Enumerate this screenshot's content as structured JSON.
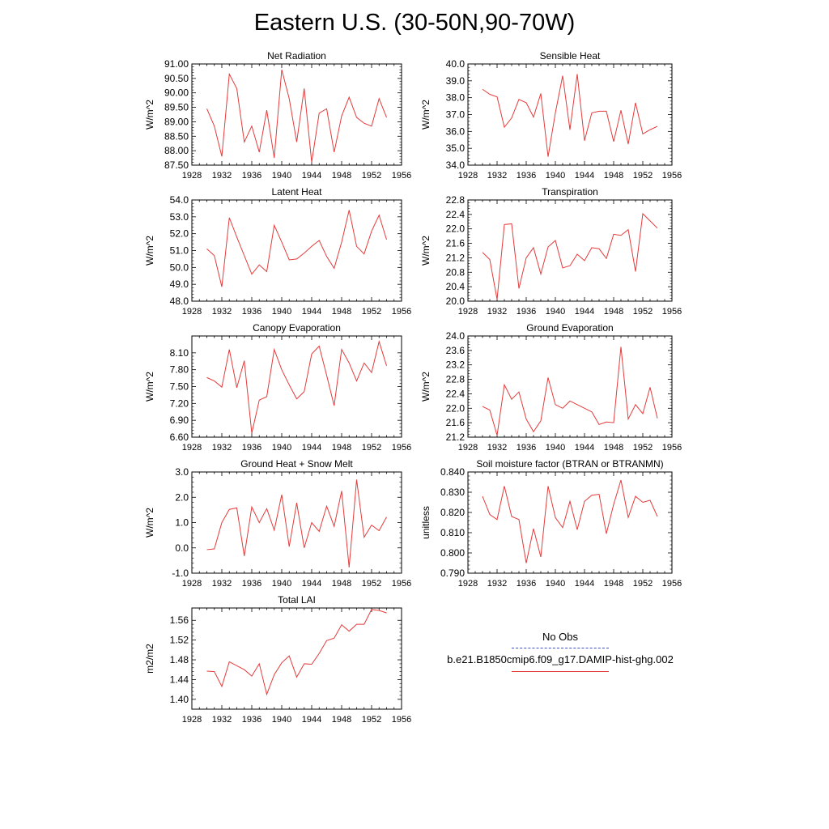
{
  "title": "Eastern U.S. (30-50N,90-70W)",
  "legend": {
    "obs_label": "No Obs",
    "obs_color": "#3f4fbf",
    "model_label": "b.e21.B1850cmip6.f09_g17.DAMIP-hist-ghg.002",
    "model_color": "#e43b3b"
  },
  "chart_data": [
    {
      "type": "line",
      "title": "Net Radiation",
      "ylabel": "W/m^2",
      "x": [
        1930,
        1931,
        1932,
        1933,
        1934,
        1935,
        1936,
        1937,
        1938,
        1939,
        1940,
        1941,
        1942,
        1943,
        1944,
        1945,
        1946,
        1947,
        1948,
        1949,
        1950,
        1951,
        1952,
        1953,
        1954
      ],
      "series": [
        {
          "values": [
            89.45,
            88.85,
            87.8,
            90.65,
            90.15,
            88.3,
            88.85,
            87.95,
            89.4,
            87.75,
            90.8,
            89.8,
            88.3,
            90.15,
            87.6,
            89.3,
            89.45,
            87.95,
            89.2,
            89.85,
            89.15,
            88.95,
            88.85,
            89.8,
            89.15
          ]
        }
      ],
      "xlim": [
        1928,
        1956
      ],
      "xticks": [
        1928,
        1932,
        1936,
        1940,
        1944,
        1948,
        1952,
        1956
      ],
      "ylim": [
        87.5,
        91.0
      ],
      "yticks": [
        "87.50",
        "88.00",
        "88.50",
        "89.00",
        "89.50",
        "90.00",
        "90.50",
        "91.00"
      ]
    },
    {
      "type": "line",
      "title": "Sensible Heat",
      "ylabel": "W/m^2",
      "x": [
        1930,
        1931,
        1932,
        1933,
        1934,
        1935,
        1936,
        1937,
        1938,
        1939,
        1940,
        1941,
        1942,
        1943,
        1944,
        1945,
        1946,
        1947,
        1948,
        1949,
        1950,
        1951,
        1952,
        1953,
        1954
      ],
      "series": [
        {
          "values": [
            38.5,
            38.2,
            38.05,
            36.25,
            36.8,
            37.9,
            37.7,
            36.85,
            38.25,
            34.5,
            37.1,
            39.3,
            36.1,
            39.4,
            35.45,
            37.1,
            37.2,
            37.2,
            35.4,
            37.25,
            35.25,
            37.7,
            35.85,
            36.1,
            36.3
          ]
        }
      ],
      "xlim": [
        1928,
        1956
      ],
      "xticks": [
        1928,
        1932,
        1936,
        1940,
        1944,
        1948,
        1952,
        1956
      ],
      "ylim": [
        34.0,
        40.0
      ],
      "yticks": [
        "34.0",
        "35.0",
        "36.0",
        "37.0",
        "38.0",
        "39.0",
        "40.0"
      ]
    },
    {
      "type": "line",
      "title": "Latent Heat",
      "ylabel": "W/m^2",
      "x": [
        1930,
        1931,
        1932,
        1933,
        1934,
        1935,
        1936,
        1937,
        1938,
        1939,
        1940,
        1941,
        1942,
        1943,
        1944,
        1945,
        1946,
        1947,
        1948,
        1949,
        1950,
        1951,
        1952,
        1953,
        1954
      ],
      "series": [
        {
          "values": [
            51.1,
            50.7,
            48.85,
            52.95,
            51.8,
            50.7,
            49.6,
            50.15,
            49.75,
            52.5,
            51.5,
            50.45,
            50.5,
            50.85,
            51.25,
            51.6,
            50.65,
            49.95,
            51.5,
            53.4,
            51.25,
            50.8,
            52.15,
            53.1,
            51.65
          ]
        }
      ],
      "xlim": [
        1928,
        1956
      ],
      "xticks": [
        1928,
        1932,
        1936,
        1940,
        1944,
        1948,
        1952,
        1956
      ],
      "ylim": [
        48.0,
        54.0
      ],
      "yticks": [
        "48.0",
        "49.0",
        "50.0",
        "51.0",
        "52.0",
        "53.0",
        "54.0"
      ]
    },
    {
      "type": "line",
      "title": "Transpiration",
      "ylabel": "W/m^2",
      "x": [
        1930,
        1931,
        1932,
        1933,
        1934,
        1935,
        1936,
        1937,
        1938,
        1939,
        1940,
        1941,
        1942,
        1943,
        1944,
        1945,
        1946,
        1947,
        1948,
        1949,
        1950,
        1951,
        1952,
        1953,
        1954
      ],
      "series": [
        {
          "values": [
            21.35,
            21.15,
            20.05,
            22.12,
            22.14,
            20.35,
            21.2,
            21.48,
            20.75,
            21.5,
            21.68,
            20.92,
            20.98,
            21.3,
            21.12,
            21.48,
            21.45,
            21.18,
            21.85,
            21.82,
            21.98,
            20.82,
            22.42,
            22.22,
            22.02
          ]
        }
      ],
      "xlim": [
        1928,
        1956
      ],
      "xticks": [
        1928,
        1932,
        1936,
        1940,
        1944,
        1948,
        1952,
        1956
      ],
      "ylim": [
        20.0,
        22.8
      ],
      "yticks": [
        "20.0",
        "20.4",
        "20.8",
        "21.2",
        "21.6",
        "22.0",
        "22.4",
        "22.8"
      ]
    },
    {
      "type": "line",
      "title": "Canopy Evaporation",
      "ylabel": "W/m^2",
      "x": [
        1930,
        1931,
        1932,
        1933,
        1934,
        1935,
        1936,
        1937,
        1938,
        1939,
        1940,
        1941,
        1942,
        1943,
        1944,
        1945,
        1946,
        1947,
        1948,
        1949,
        1950,
        1951,
        1952,
        1953,
        1954
      ],
      "series": [
        {
          "values": [
            7.66,
            7.6,
            7.49,
            8.16,
            7.48,
            7.96,
            6.67,
            7.26,
            7.32,
            8.16,
            7.8,
            7.53,
            7.28,
            7.41,
            8.08,
            8.22,
            7.7,
            7.16,
            8.16,
            7.92,
            7.6,
            7.92,
            7.75,
            8.3,
            7.87
          ]
        }
      ],
      "xlim": [
        1928,
        1956
      ],
      "xticks": [
        1928,
        1932,
        1936,
        1940,
        1944,
        1948,
        1952,
        1956
      ],
      "ylim": [
        6.6,
        8.4
      ],
      "yticks": [
        "6.60",
        "6.90",
        "7.20",
        "7.50",
        "7.80",
        "8.10"
      ]
    },
    {
      "type": "line",
      "title": "Ground Evaporation",
      "ylabel": "W/m^2",
      "x": [
        1930,
        1931,
        1932,
        1933,
        1934,
        1935,
        1936,
        1937,
        1938,
        1939,
        1940,
        1941,
        1942,
        1943,
        1944,
        1945,
        1946,
        1947,
        1948,
        1949,
        1950,
        1951,
        1952,
        1953,
        1954
      ],
      "series": [
        {
          "values": [
            22.05,
            21.95,
            21.25,
            22.65,
            22.25,
            22.45,
            21.7,
            21.35,
            21.65,
            22.85,
            22.1,
            22.0,
            22.2,
            22.1,
            22.0,
            21.9,
            21.55,
            21.62,
            21.6,
            23.7,
            21.7,
            22.1,
            21.85,
            22.58,
            21.72
          ]
        }
      ],
      "xlim": [
        1928,
        1956
      ],
      "xticks": [
        1928,
        1932,
        1936,
        1940,
        1944,
        1948,
        1952,
        1956
      ],
      "ylim": [
        21.2,
        24.0
      ],
      "yticks": [
        "21.2",
        "21.6",
        "22.0",
        "22.4",
        "22.8",
        "23.2",
        "23.6",
        "24.0"
      ]
    },
    {
      "type": "line",
      "title": "Ground Heat + Snow Melt",
      "ylabel": "W/m^2",
      "x": [
        1930,
        1931,
        1932,
        1933,
        1934,
        1935,
        1936,
        1937,
        1938,
        1939,
        1940,
        1941,
        1942,
        1943,
        1944,
        1945,
        1946,
        1947,
        1948,
        1949,
        1950,
        1951,
        1952,
        1953,
        1954
      ],
      "series": [
        {
          "values": [
            -0.07,
            -0.04,
            1.0,
            1.52,
            1.58,
            -0.32,
            1.62,
            1.0,
            1.55,
            0.7,
            2.1,
            0.05,
            1.78,
            0.0,
            1.0,
            0.65,
            1.65,
            0.85,
            2.25,
            -0.77,
            2.7,
            0.42,
            0.9,
            0.68,
            1.22
          ]
        }
      ],
      "xlim": [
        1928,
        1956
      ],
      "xticks": [
        1928,
        1932,
        1936,
        1940,
        1944,
        1948,
        1952,
        1956
      ],
      "ylim": [
        -1.0,
        3.0
      ],
      "yticks": [
        "-1.0",
        "0.0",
        "1.0",
        "2.0",
        "3.0"
      ]
    },
    {
      "type": "line",
      "title": "Soil moisture factor (BTRAN or BTRANMN)",
      "ylabel": "unitless",
      "x": [
        1930,
        1931,
        1932,
        1933,
        1934,
        1935,
        1936,
        1937,
        1938,
        1939,
        1940,
        1941,
        1942,
        1943,
        1944,
        1945,
        1946,
        1947,
        1948,
        1949,
        1950,
        1951,
        1952,
        1953,
        1954
      ],
      "series": [
        {
          "values": [
            0.828,
            0.819,
            0.8165,
            0.833,
            0.818,
            0.8165,
            0.795,
            0.812,
            0.798,
            0.833,
            0.8175,
            0.8125,
            0.8255,
            0.8115,
            0.8255,
            0.8285,
            0.829,
            0.8095,
            0.824,
            0.836,
            0.8175,
            0.828,
            0.825,
            0.826,
            0.818
          ]
        }
      ],
      "xlim": [
        1928,
        1956
      ],
      "xticks": [
        1928,
        1932,
        1936,
        1940,
        1944,
        1948,
        1952,
        1956
      ],
      "ylim": [
        0.79,
        0.84
      ],
      "yticks": [
        "0.790",
        "0.800",
        "0.810",
        "0.820",
        "0.830",
        "0.840"
      ]
    },
    {
      "type": "line",
      "title": "Total LAI",
      "ylabel": "m2/m2",
      "x": [
        1930,
        1931,
        1932,
        1933,
        1934,
        1935,
        1936,
        1937,
        1938,
        1939,
        1940,
        1941,
        1942,
        1943,
        1944,
        1945,
        1946,
        1947,
        1948,
        1949,
        1950,
        1951,
        1952,
        1953,
        1954
      ],
      "series": [
        {
          "values": [
            1.457,
            1.456,
            1.426,
            1.476,
            1.468,
            1.46,
            1.447,
            1.472,
            1.41,
            1.45,
            1.474,
            1.488,
            1.445,
            1.472,
            1.471,
            1.493,
            1.519,
            1.524,
            1.551,
            1.538,
            1.552,
            1.552,
            1.582,
            1.58,
            1.575
          ]
        }
      ],
      "xlim": [
        1928,
        1956
      ],
      "xticks": [
        1928,
        1932,
        1936,
        1940,
        1944,
        1948,
        1952,
        1956
      ],
      "ylim": [
        1.38,
        1.585
      ],
      "yticks": [
        "1.40",
        "1.44",
        "1.48",
        "1.52",
        "1.56"
      ]
    }
  ]
}
